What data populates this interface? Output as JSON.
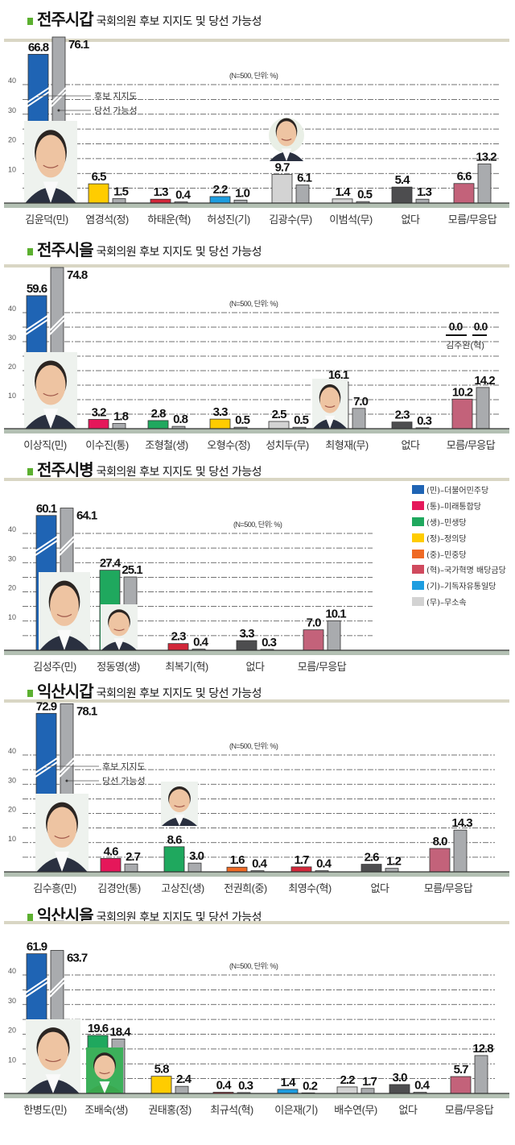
{
  "party_colors": {
    "민": "#1f64b4",
    "통": "#e5175a",
    "생": "#1fa85e",
    "정": "#ffcc00",
    "중": "#ef6a25",
    "혁": "#d2283a",
    "기": "#1d9de0",
    "무": "#d3d3d3",
    "없다": "#4d4d4f",
    "모름": "#c3627a",
    "win": "#a9abae"
  },
  "party_legend": [
    {
      "label": "(민)–더불어민주당",
      "color": "#1f64b4"
    },
    {
      "label": "(통)–미래통합당",
      "color": "#e5175a"
    },
    {
      "label": "(생)–민생당",
      "color": "#1fa85e"
    },
    {
      "label": "(정)–정의당",
      "color": "#ffcc00"
    },
    {
      "label": "(중)–민중당",
      "color": "#ef6a25"
    },
    {
      "label": "(혁)–국가혁명 배당금당",
      "color": "#d04a5e"
    },
    {
      "label": "(기)–기독자유통일당",
      "color": "#1d9de0"
    },
    {
      "label": "(무)–무소속",
      "color": "#d3d3d3"
    }
  ],
  "chart_data": [
    {
      "type": "bar",
      "title_place": "전주시갑",
      "title_rest": "국회의원 후보 지지도 및 당선 가능성",
      "note": "(N=500, 단위: %)",
      "series": [
        "후보 지지도",
        "당선 가능성"
      ],
      "series_legend_shown": true,
      "yticks": [
        "10",
        "20",
        "30",
        "40"
      ],
      "ylim": [
        0,
        40
      ],
      "axis_break": true,
      "grid": true,
      "candidates": [
        {
          "name": "김윤덕(민)",
          "party": "민",
          "support": 66.8,
          "win": 76.1,
          "photo": true
        },
        {
          "name": "염경석(정)",
          "party": "정",
          "support": 6.5,
          "win": 1.5
        },
        {
          "name": "하태운(혁)",
          "party": "혁",
          "support": 1.3,
          "win": 0.4
        },
        {
          "name": "허성진(기)",
          "party": "기",
          "support": 2.2,
          "win": 1.0
        },
        {
          "name": "김광수(무)",
          "party": "무",
          "support": 9.7,
          "win": 6.1,
          "photo": true
        },
        {
          "name": "이범석(무)",
          "party": "무",
          "support": 1.4,
          "win": 0.5
        },
        {
          "name": "없다",
          "party": "없다",
          "support": 5.4,
          "win": 1.3
        },
        {
          "name": "모름/무응답",
          "party": "모름",
          "support": 6.6,
          "win": 13.2
        }
      ]
    },
    {
      "type": "bar",
      "title_place": "전주시을",
      "title_rest": "국회의원 후보 지지도 및 당선 가능성",
      "note": "(N=500, 단위: %)",
      "series_legend_shown": false,
      "yticks": [
        "10",
        "20",
        "30",
        "40"
      ],
      "ylim": [
        0,
        40
      ],
      "axis_break": true,
      "grid": true,
      "candidates": [
        {
          "name": "이상직(민)",
          "party": "민",
          "support": 59.6,
          "win": 74.8,
          "photo": true
        },
        {
          "name": "이수진(통)",
          "party": "통",
          "support": 3.2,
          "win": 1.8
        },
        {
          "name": "조형철(생)",
          "party": "생",
          "support": 2.8,
          "win": 0.8
        },
        {
          "name": "오형수(정)",
          "party": "정",
          "support": 3.3,
          "win": 0.5
        },
        {
          "name": "성치두(무)",
          "party": "무",
          "support": 2.5,
          "win": 0.5
        },
        {
          "name": "최형재(무)",
          "party": "무",
          "support": 16.1,
          "win": 7.0,
          "photo": true
        },
        {
          "name": "없다",
          "party": "없다",
          "support": 2.3,
          "win": 0.3
        },
        {
          "name": "모름/무응답",
          "party": "모름",
          "support": 10.2,
          "win": 14.2
        }
      ],
      "extra": {
        "name": "김주완(혁)",
        "support": "0.0",
        "win": "0.0"
      }
    },
    {
      "type": "bar",
      "title_place": "전주시병",
      "title_rest": "국회의원 후보 지지도 및 당선 가능성",
      "note": "(N=500, 단위: %)",
      "series_legend_shown": false,
      "yticks": [
        "10",
        "20",
        "30",
        "40"
      ],
      "ylim": [
        0,
        40
      ],
      "axis_break": true,
      "grid": true,
      "candidates": [
        {
          "name": "김성주(민)",
          "party": "민",
          "support": 60.1,
          "win": 64.1,
          "photo": true
        },
        {
          "name": "정동영(생)",
          "party": "생",
          "support": 27.4,
          "win": 25.1,
          "photo": true
        },
        {
          "name": "최복기(혁)",
          "party": "혁",
          "support": 2.3,
          "win": 0.4
        },
        {
          "name": "없다",
          "party": "없다",
          "support": 3.3,
          "win": 0.3
        },
        {
          "name": "모름/무응답",
          "party": "모름",
          "support": 7.0,
          "win": 10.1
        }
      ]
    },
    {
      "type": "bar",
      "title_place": "익산시갑",
      "title_rest": "국회의원 후보 지지도 및 당선 가능성",
      "note": "(N=500, 단위: %)",
      "series": [
        "후보 지지도",
        "당선 가능성"
      ],
      "series_legend_shown": true,
      "yticks": [
        "10",
        "20",
        "30",
        "40"
      ],
      "ylim": [
        0,
        40
      ],
      "axis_break": true,
      "grid": true,
      "candidates": [
        {
          "name": "김수흥(민)",
          "party": "민",
          "support": 72.9,
          "win": 78.1,
          "photo": true
        },
        {
          "name": "김경안(통)",
          "party": "통",
          "support": 4.6,
          "win": 2.7
        },
        {
          "name": "고상진(생)",
          "party": "생",
          "support": 8.6,
          "win": 3.0,
          "photo": true
        },
        {
          "name": "전권희(중)",
          "party": "중",
          "support": 1.6,
          "win": 0.4
        },
        {
          "name": "최영수(혁)",
          "party": "혁",
          "support": 1.7,
          "win": 0.4
        },
        {
          "name": "없다",
          "party": "없다",
          "support": 2.6,
          "win": 1.2
        },
        {
          "name": "모름/무응답",
          "party": "모름",
          "support": 8.0,
          "win": 14.3
        }
      ]
    },
    {
      "type": "bar",
      "title_place": "익산시을",
      "title_rest": "국회의원 후보 지지도 및 당선 가능성",
      "note": "(N=500, 단위: %)",
      "series_legend_shown": false,
      "yticks": [
        "10",
        "20",
        "30",
        "40"
      ],
      "ylim": [
        0,
        40
      ],
      "axis_break": true,
      "grid": true,
      "candidates": [
        {
          "name": "한병도(민)",
          "party": "민",
          "support": 61.9,
          "win": 63.7,
          "photo": true
        },
        {
          "name": "조배숙(생)",
          "party": "생",
          "support": 19.6,
          "win": 18.4,
          "photo": true
        },
        {
          "name": "권태홍(정)",
          "party": "정",
          "support": 5.8,
          "win": 2.4
        },
        {
          "name": "최규석(혁)",
          "party": "혁",
          "support": 0.4,
          "win": 0.3
        },
        {
          "name": "이은재(기)",
          "party": "기",
          "support": 1.4,
          "win": 0.2
        },
        {
          "name": "배수연(무)",
          "party": "무",
          "support": 2.2,
          "win": 1.7
        },
        {
          "name": "없다",
          "party": "없다",
          "support": 3.0,
          "win": 0.4
        },
        {
          "name": "모름/무응답",
          "party": "모름",
          "support": 5.7,
          "win": 12.8
        }
      ]
    }
  ]
}
